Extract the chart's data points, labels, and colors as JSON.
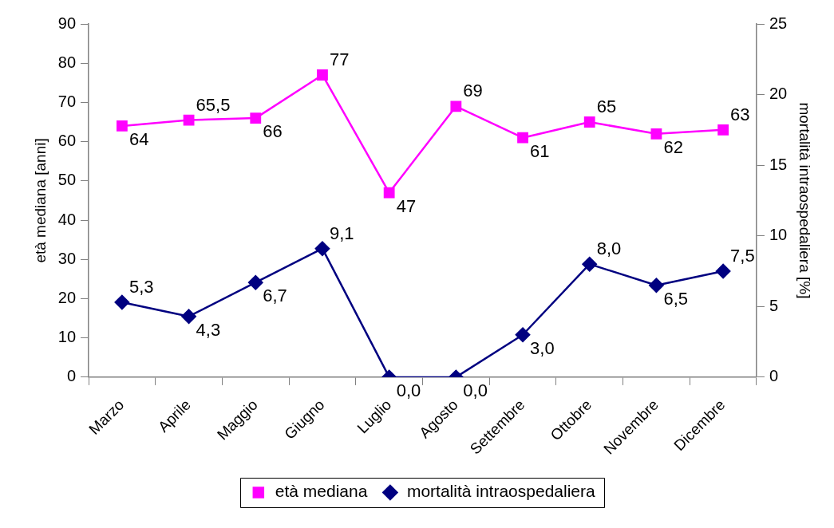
{
  "chart_data": {
    "type": "line",
    "categories": [
      "Marzo",
      "Aprile",
      "Maggio",
      "Giugno",
      "Luglio",
      "Agosto",
      "Settembre",
      "Ottobre",
      "Novembre",
      "Dicembre"
    ],
    "ylabel": "età mediana [anni]",
    "y2label": "mortalità intraospedaliera [%]",
    "ylim": [
      0,
      90
    ],
    "yticks": [
      0,
      10,
      20,
      30,
      40,
      50,
      60,
      70,
      80,
      90
    ],
    "y2lim": [
      0,
      25
    ],
    "y2ticks": [
      0,
      5,
      10,
      15,
      20,
      25
    ],
    "grid": false,
    "legend": "bottom",
    "series": [
      {
        "name": "età mediana",
        "color": "#ff00ff",
        "marker": "square",
        "values": [
          64,
          65.5,
          66,
          77,
          47,
          69,
          61,
          65,
          62,
          63
        ],
        "value_labels": [
          "64",
          "65,5",
          "66",
          "77",
          "47",
          "69",
          "61",
          "65",
          "62",
          "63"
        ]
      },
      {
        "name": "mortalità intraospedaliera",
        "color": "#000080",
        "marker": "diamond",
        "axis": "y2",
        "values": [
          5.3,
          4.3,
          6.7,
          9.1,
          0.0,
          0.0,
          3.0,
          8.0,
          6.5,
          7.5
        ],
        "value_labels": [
          "5,3",
          "4,3",
          "6,7",
          "9,1",
          "0,0",
          "0,0",
          "3,0",
          "8,0",
          "6,5",
          "7,5"
        ]
      }
    ]
  }
}
